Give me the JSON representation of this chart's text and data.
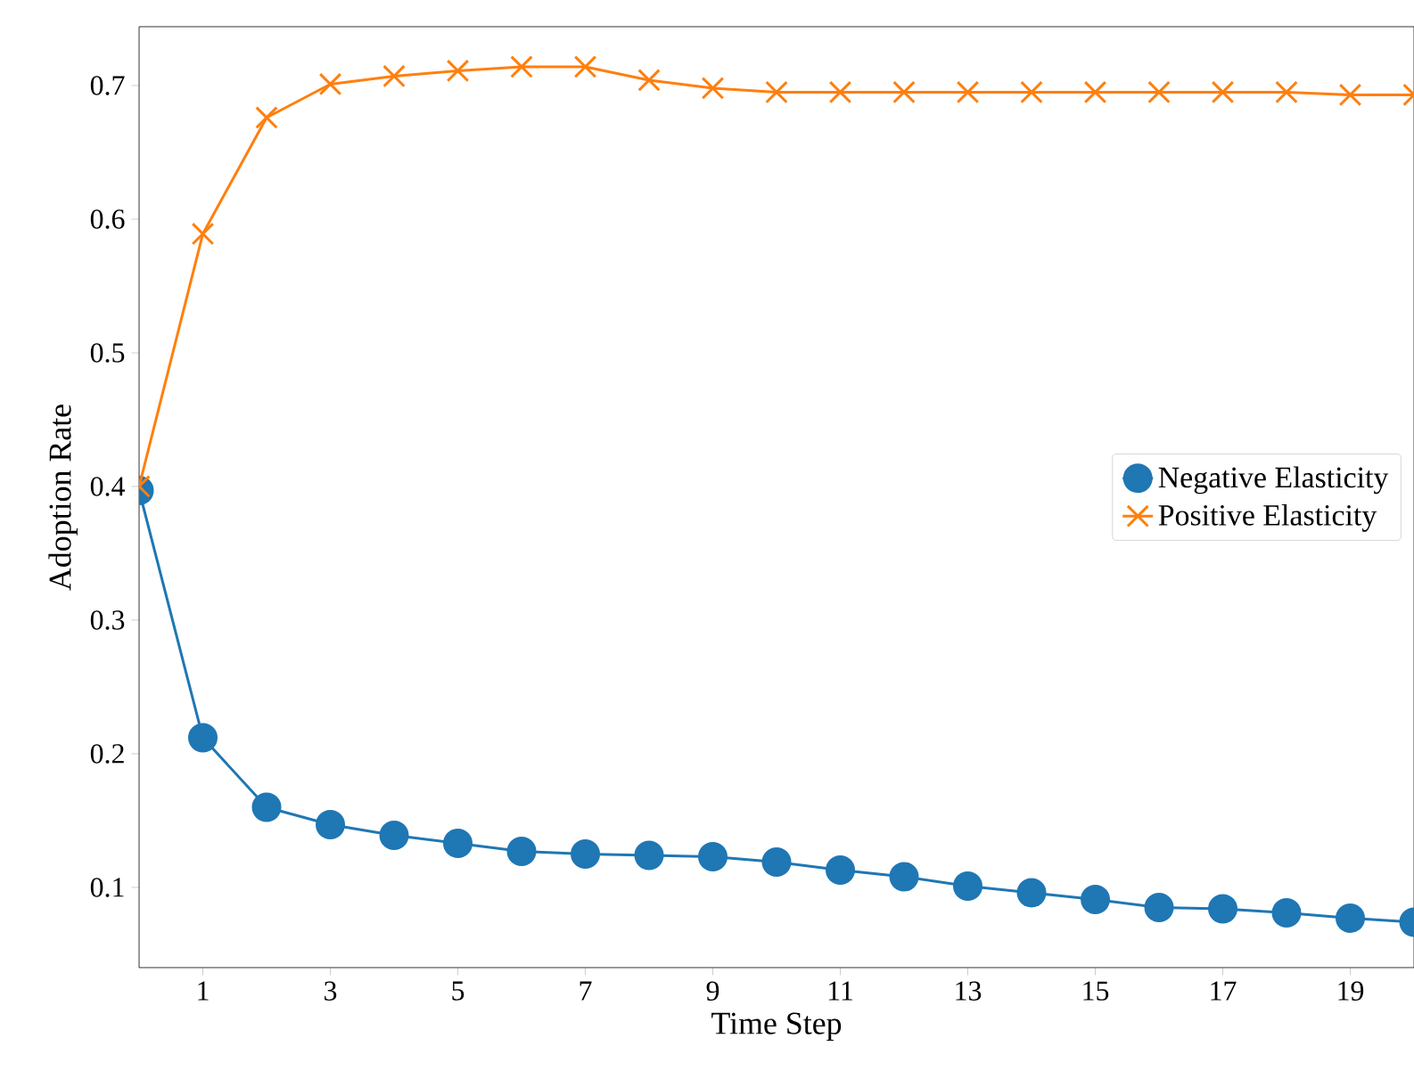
{
  "chart_data": {
    "type": "line",
    "xlabel": "Time Step",
    "ylabel": "Adoption Rate",
    "x": [
      0,
      1,
      2,
      3,
      4,
      5,
      6,
      7,
      8,
      9,
      10,
      11,
      12,
      13,
      14,
      15,
      16,
      17,
      18,
      19,
      20
    ],
    "series": [
      {
        "name": "Negative Elasticity",
        "color": "#1f77b4",
        "marker": "circle",
        "values": [
          0.397,
          0.212,
          0.16,
          0.147,
          0.139,
          0.133,
          0.127,
          0.125,
          0.124,
          0.123,
          0.119,
          0.113,
          0.108,
          0.101,
          0.096,
          0.091,
          0.085,
          0.084,
          0.081,
          0.077,
          0.074
        ]
      },
      {
        "name": "Positive Elasticity",
        "color": "#ff7f0e",
        "marker": "cross",
        "values": [
          0.4,
          0.589,
          0.676,
          0.701,
          0.707,
          0.711,
          0.714,
          0.714,
          0.704,
          0.698,
          0.695,
          0.695,
          0.695,
          0.695,
          0.695,
          0.695,
          0.695,
          0.695,
          0.695,
          0.693,
          0.693
        ]
      }
    ],
    "xlim": [
      0,
      20
    ],
    "ylim": [
      0.04,
      0.744
    ],
    "xticks": [
      1,
      3,
      5,
      7,
      9,
      11,
      13,
      15,
      17,
      19
    ],
    "yticks": [
      0.1,
      0.2,
      0.3,
      0.4,
      0.5,
      0.6,
      0.7
    ],
    "grid": false,
    "legend": "right"
  }
}
